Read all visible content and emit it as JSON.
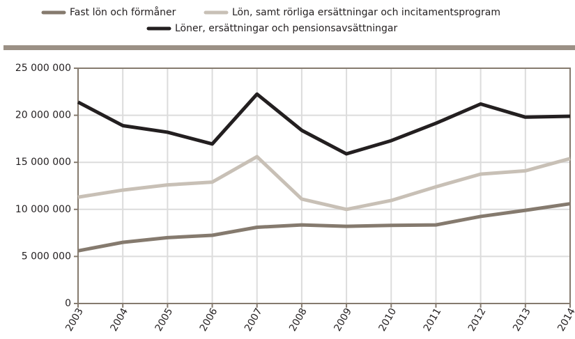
{
  "chart_data": {
    "type": "line",
    "categories": [
      "2003",
      "2004",
      "2005",
      "2006",
      "2007",
      "2008",
      "2009",
      "2010",
      "2011",
      "2012",
      "2013",
      "2014"
    ],
    "series": [
      {
        "name": "Fast lön och förmåner",
        "color": "#857a6e",
        "values": [
          5600000,
          6500000,
          7000000,
          7250000,
          8100000,
          8350000,
          8200000,
          8300000,
          8350000,
          9250000,
          9900000,
          10600000
        ]
      },
      {
        "name": "Lön, samt rörliga ersättningar och incitamentsprogram",
        "color": "#c8c0b6",
        "values": [
          11300000,
          12050000,
          12600000,
          12900000,
          15600000,
          11100000,
          10000000,
          10950000,
          12400000,
          13750000,
          14100000,
          15400000
        ]
      },
      {
        "name": "Löner, ersättningar och pensionsavsättningar",
        "color": "#231f20",
        "values": [
          21400000,
          18900000,
          18200000,
          16950000,
          22250000,
          18400000,
          15900000,
          17300000,
          19150000,
          21200000,
          19800000,
          19900000
        ]
      }
    ],
    "ylim": [
      0,
      25000000
    ],
    "yticks": [
      0,
      {
        "value": 5000000,
        "label": "5 000 000"
      },
      {
        "value": 10000000,
        "label": "10 000 000"
      },
      {
        "value": 15000000,
        "label": "15 000 000"
      },
      {
        "value": 20000000,
        "label": "20 000 000"
      },
      {
        "value": 25000000,
        "label": "25 000 000"
      }
    ],
    "grid": true
  }
}
